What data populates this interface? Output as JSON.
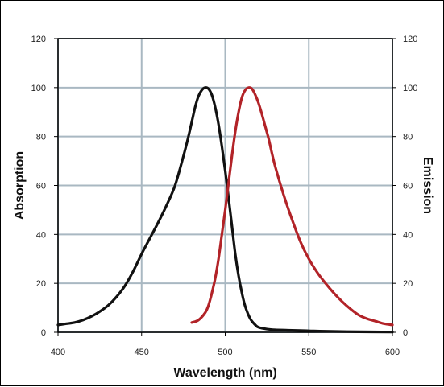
{
  "chart_data": {
    "type": "line",
    "title": "",
    "xlabel": "Wavelength (nm)",
    "ylabel": "Absorption",
    "ylabel_right": "Emission",
    "xlim": [
      400,
      600
    ],
    "ylim": [
      0,
      120
    ],
    "x_ticks": [
      400,
      450,
      500,
      550,
      600
    ],
    "y_ticks": [
      0,
      20,
      40,
      60,
      80,
      100,
      120
    ],
    "y_ticks_right": [
      0,
      20,
      40,
      60,
      80,
      100,
      120
    ],
    "grid": true,
    "legend": "none",
    "colors": {
      "grid": "#a9b8c2",
      "absorption": "#111111",
      "emission": "#b22328"
    },
    "series": [
      {
        "color": "#111111",
        "x": [
          400,
          405,
          410,
          415,
          420,
          425,
          430,
          435,
          440,
          445,
          450,
          455,
          460,
          465,
          470,
          475,
          478,
          480,
          482,
          484,
          486,
          488,
          490,
          492,
          494,
          496,
          498,
          500,
          502,
          504,
          506,
          508,
          510,
          512,
          515,
          518,
          520,
          525,
          530,
          540,
          550,
          560,
          580,
          600
        ],
        "y": [
          3,
          3.5,
          4,
          5,
          6.5,
          8.5,
          11,
          14.5,
          19,
          25,
          32,
          38.5,
          45,
          52,
          60,
          72,
          80,
          86,
          92,
          96.5,
          99,
          100,
          99.5,
          97,
          92,
          85,
          76,
          66,
          55,
          43.5,
          32,
          23,
          16,
          10.5,
          5.5,
          3,
          2,
          1.3,
          1,
          0.8,
          0.6,
          0.4,
          0.2,
          0.1
        ]
      },
      {
        "color": "#b22328",
        "x": [
          480,
          484,
          488,
          490,
          492,
          494,
          496,
          498,
          500,
          502,
          504,
          506,
          508,
          510,
          512,
          514,
          516,
          518,
          520,
          522,
          524,
          526,
          528,
          530,
          535,
          540,
          545,
          550,
          555,
          560,
          565,
          570,
          575,
          580,
          585,
          590,
          595,
          600
        ],
        "y": [
          4,
          5,
          8,
          11,
          16,
          22,
          30,
          40,
          50,
          61,
          72,
          82,
          90,
          96,
          99,
          100,
          99.5,
          97,
          93.5,
          89,
          84,
          79,
          73,
          67.5,
          56,
          46,
          37,
          30,
          24.5,
          20,
          16,
          12.5,
          9.5,
          7,
          5.5,
          4.5,
          3.5,
          3
        ]
      }
    ]
  }
}
